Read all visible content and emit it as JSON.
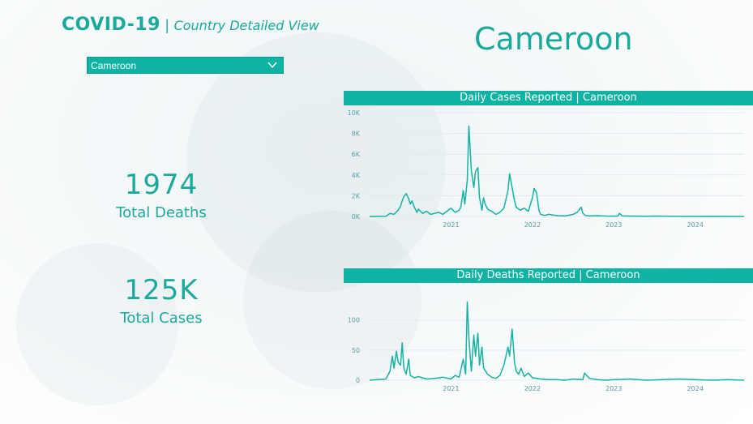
{
  "header": {
    "title": "COVID-19",
    "separator": "|",
    "subtitle": "Country Detailed View"
  },
  "country_select": {
    "value": "Cameroon",
    "icon": "chevron-down-icon"
  },
  "country_heading": "Cameroon",
  "kpis": {
    "deaths": {
      "value": "1974",
      "label": "Total Deaths"
    },
    "cases": {
      "value": "125K",
      "label": "Total Cases"
    }
  },
  "colors": {
    "accent": "#0fb3a3",
    "line": "#14b2a3",
    "text": "#1aa99b"
  },
  "chart_data": [
    {
      "type": "line",
      "title": "Daily Cases Reported | Cameroon",
      "y_ticks": [
        "0K",
        "2K",
        "4K",
        "6K",
        "8K",
        "10K"
      ],
      "ylim": [
        0,
        10000
      ],
      "x_ticks": [
        "2021",
        "2022",
        "2023",
        "2024"
      ],
      "xlim": [
        2020.0,
        2024.6
      ],
      "grid": true,
      "x": [
        2020.0,
        2020.2,
        2020.25,
        2020.3,
        2020.35,
        2020.38,
        2020.4,
        2020.42,
        2020.45,
        2020.48,
        2020.5,
        2020.52,
        2020.55,
        2020.58,
        2020.6,
        2020.65,
        2020.7,
        2020.75,
        2020.8,
        2020.85,
        2020.9,
        2020.95,
        2021.0,
        2021.05,
        2021.1,
        2021.12,
        2021.15,
        2021.17,
        2021.2,
        2021.22,
        2021.25,
        2021.28,
        2021.3,
        2021.33,
        2021.35,
        2021.38,
        2021.4,
        2021.42,
        2021.45,
        2021.5,
        2021.55,
        2021.6,
        2021.65,
        2021.7,
        2021.72,
        2021.75,
        2021.78,
        2021.8,
        2021.85,
        2021.9,
        2021.95,
        2022.0,
        2022.02,
        2022.05,
        2022.08,
        2022.1,
        2022.15,
        2022.2,
        2022.3,
        2022.4,
        2022.5,
        2022.55,
        2022.6,
        2022.62,
        2022.65,
        2022.7,
        2022.8,
        2022.9,
        2023.0,
        2023.05,
        2023.07,
        2023.1,
        2023.2,
        2023.3,
        2023.4,
        2023.5,
        2023.7,
        2024.0,
        2024.2,
        2024.36,
        2024.6
      ],
      "y": [
        0,
        20,
        300,
        200,
        600,
        1000,
        1500,
        1900,
        2200,
        1700,
        1200,
        1500,
        900,
        400,
        700,
        300,
        500,
        200,
        300,
        400,
        200,
        500,
        800,
        400,
        600,
        900,
        2500,
        1200,
        3500,
        8700,
        4400,
        2800,
        4300,
        4700,
        1800,
        600,
        1800,
        1200,
        700,
        500,
        200,
        400,
        800,
        2500,
        4100,
        2800,
        1500,
        900,
        600,
        800,
        500,
        1800,
        2700,
        2300,
        600,
        200,
        100,
        200,
        80,
        50,
        200,
        400,
        900,
        300,
        100,
        50,
        80,
        40,
        30,
        50,
        300,
        60,
        40,
        30,
        20,
        40,
        20,
        10,
        20,
        10,
        0
      ]
    },
    {
      "type": "line",
      "title": "Daily Deaths Reported | Cameroon",
      "y_ticks": [
        "0",
        "50",
        "100"
      ],
      "ylim": [
        0,
        140
      ],
      "x_ticks": [
        "2021",
        "2022",
        "2023",
        "2024"
      ],
      "xlim": [
        2020.0,
        2024.6
      ],
      "grid": true,
      "x": [
        2020.0,
        2020.2,
        2020.25,
        2020.28,
        2020.3,
        2020.33,
        2020.35,
        2020.38,
        2020.4,
        2020.42,
        2020.45,
        2020.48,
        2020.5,
        2020.55,
        2020.6,
        2020.7,
        2020.8,
        2020.9,
        2021.0,
        2021.05,
        2021.1,
        2021.15,
        2021.18,
        2021.2,
        2021.22,
        2021.25,
        2021.28,
        2021.3,
        2021.33,
        2021.35,
        2021.38,
        2021.4,
        2021.45,
        2021.5,
        2021.55,
        2021.6,
        2021.65,
        2021.7,
        2021.72,
        2021.75,
        2021.78,
        2021.8,
        2021.83,
        2021.86,
        2021.9,
        2021.95,
        2022.0,
        2022.05,
        2022.1,
        2022.2,
        2022.3,
        2022.4,
        2022.5,
        2022.62,
        2022.64,
        2022.7,
        2022.8,
        2022.9,
        2023.0,
        2023.2,
        2023.4,
        2023.6,
        2023.8,
        2024.0,
        2024.2,
        2024.4,
        2024.6
      ],
      "y": [
        0,
        2,
        15,
        40,
        20,
        48,
        30,
        25,
        62,
        20,
        10,
        35,
        8,
        4,
        6,
        2,
        3,
        5,
        2,
        8,
        5,
        35,
        10,
        130,
        70,
        15,
        75,
        40,
        78,
        25,
        55,
        20,
        10,
        5,
        3,
        8,
        25,
        55,
        40,
        85,
        30,
        15,
        10,
        20,
        6,
        12,
        4,
        3,
        2,
        1,
        1,
        0,
        2,
        1,
        12,
        3,
        1,
        0,
        1,
        2,
        0,
        1,
        2,
        1,
        0,
        1,
        0
      ]
    }
  ]
}
